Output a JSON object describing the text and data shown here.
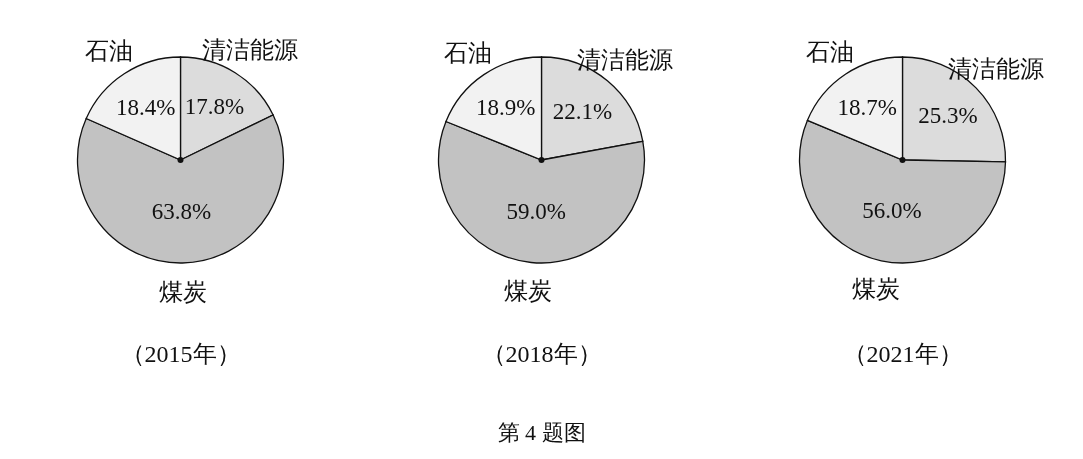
{
  "chart_data": [
    {
      "type": "pie",
      "title": "（2015年）",
      "categories": [
        "清洁能源",
        "煤炭",
        "石油"
      ],
      "values": [
        17.8,
        63.8,
        18.4
      ],
      "value_labels": [
        "17.8%",
        "63.8%",
        "18.4%"
      ],
      "colors": [
        "#dcdcdc",
        "#c2c2c2",
        "#f2f2f2"
      ]
    },
    {
      "type": "pie",
      "title": "（2018年）",
      "categories": [
        "清洁能源",
        "煤炭",
        "石油"
      ],
      "values": [
        22.1,
        59.0,
        18.9
      ],
      "value_labels": [
        "22.1%",
        "59.0%",
        "18.9%"
      ],
      "colors": [
        "#dcdcdc",
        "#c2c2c2",
        "#f2f2f2"
      ],
      "annotations": [
        "第 4 题图"
      ]
    },
    {
      "type": "pie",
      "title": "（2021年）",
      "categories": [
        "清洁能源",
        "煤炭",
        "石油"
      ],
      "values": [
        25.3,
        56.0,
        18.7
      ],
      "value_labels": [
        "25.3%",
        "56.0%",
        "18.7%"
      ],
      "colors": [
        "#dcdcdc",
        "#c2c2c2",
        "#f2f2f2"
      ]
    }
  ]
}
